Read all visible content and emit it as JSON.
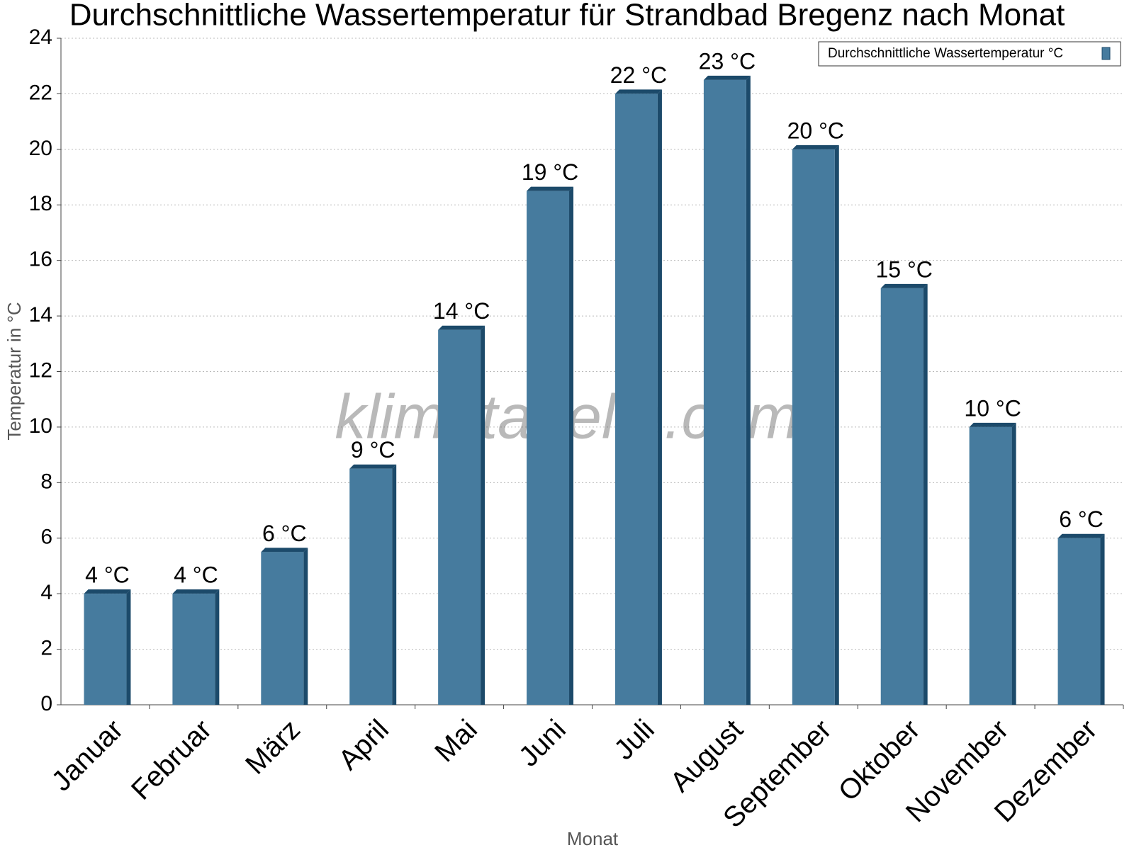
{
  "chart_data": {
    "type": "bar",
    "title": "Durchschnittliche Wassertemperatur für Strandbad Bregenz nach Monat",
    "x_label": "Monat",
    "y_label": "Temperatur in °C",
    "watermark": "klimatabelle.com",
    "categories": [
      "Januar",
      "Februar",
      "März",
      "April",
      "Mai",
      "Juni",
      "Juli",
      "August",
      "September",
      "Oktober",
      "November",
      "Dezember"
    ],
    "series": [
      {
        "name": "Durchschnittliche Wassertemperatur °C",
        "color": "#467b9e",
        "values": [
          4,
          4,
          5.5,
          8.5,
          13.5,
          18.5,
          22,
          22.5,
          20,
          15,
          10,
          6
        ],
        "value_labels": [
          "4 °C",
          "4 °C",
          "6 °C",
          "9 °C",
          "14 °C",
          "19 °C",
          "22 °C",
          "23 °C",
          "20 °C",
          "15 °C",
          "10 °C",
          "6 °C"
        ]
      }
    ],
    "ylim": [
      0,
      24
    ],
    "yticks": [
      0,
      2,
      4,
      6,
      8,
      10,
      12,
      14,
      16,
      18,
      20,
      22,
      24
    ],
    "grid": true,
    "legend": "top-right"
  }
}
